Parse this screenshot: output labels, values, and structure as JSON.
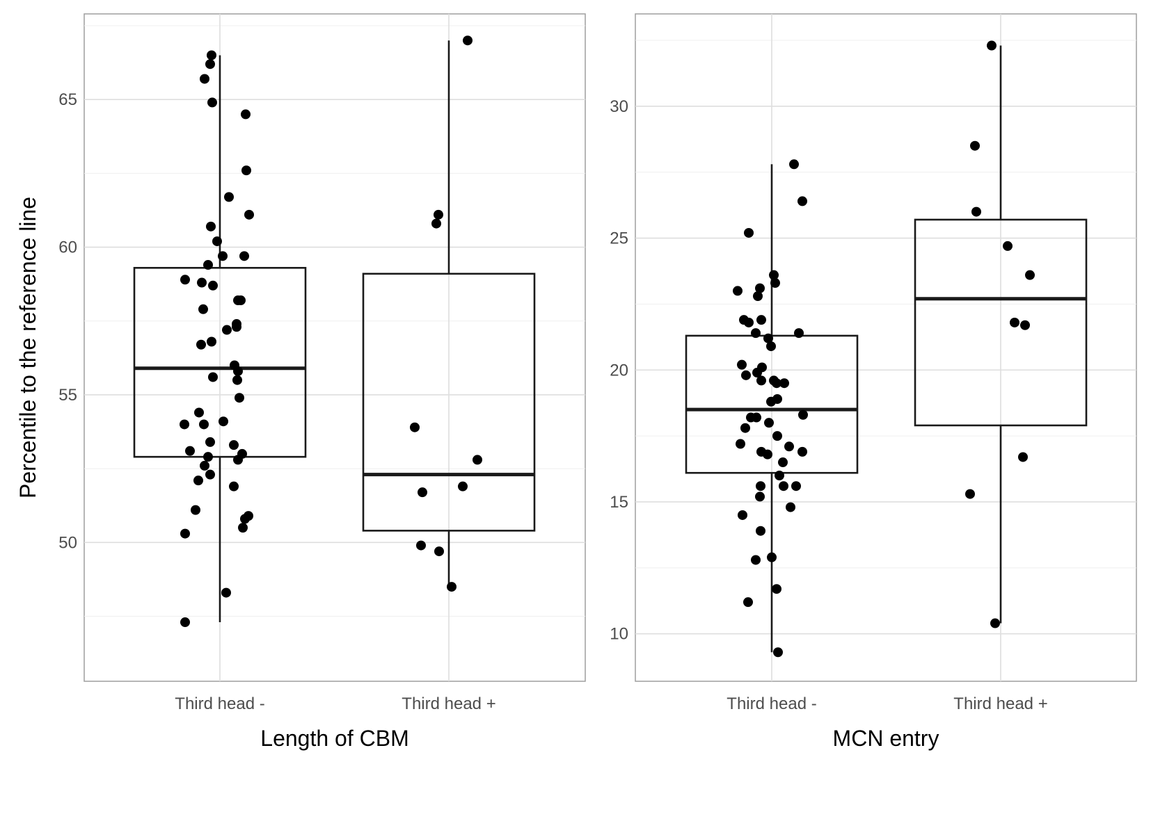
{
  "chart_data": [
    {
      "type": "boxplot",
      "xlabel": "Length of CBM",
      "ylabel": "Percentile to the reference line",
      "categories": [
        "Third head -",
        "Third head +"
      ],
      "ylim": [
        45.3,
        67.9
      ],
      "yticks": [
        50,
        55,
        60,
        65
      ],
      "grid": true,
      "boxes": [
        {
          "category": "Third head -",
          "whisker_low": 47.3,
          "q1": 52.9,
          "median": 55.9,
          "q3": 59.3,
          "whisker_high": 66.5
        },
        {
          "category": "Third head +",
          "whisker_low": 48.5,
          "q1": 50.4,
          "median": 52.3,
          "q3": 59.1,
          "whisker_high": 67.0
        }
      ],
      "points": [
        {
          "category": "Third head -",
          "values": [
            66.5,
            66.2,
            65.7,
            64.9,
            64.5,
            62.6,
            61.7,
            61.1,
            60.7,
            60.2,
            59.7,
            59.7,
            59.4,
            58.9,
            58.8,
            58.7,
            58.2,
            58.2,
            57.9,
            57.4,
            57.3,
            57.2,
            56.8,
            56.7,
            56.0,
            55.8,
            55.6,
            55.5,
            54.9,
            54.4,
            54.1,
            54.0,
            54.0,
            53.4,
            53.3,
            53.1,
            53.0,
            52.9,
            52.8,
            52.6,
            52.3,
            52.1,
            51.9,
            51.1,
            50.9,
            50.8,
            50.5,
            50.3,
            48.3,
            47.3
          ]
        },
        {
          "category": "Third head +",
          "values": [
            67.0,
            61.1,
            60.8,
            53.9,
            52.8,
            51.9,
            51.7,
            49.9,
            49.7,
            48.5
          ]
        }
      ]
    },
    {
      "type": "boxplot",
      "xlabel": "MCN entry",
      "ylabel": "",
      "categories": [
        "Third head -",
        "Third head +"
      ],
      "ylim": [
        8.2,
        33.5
      ],
      "yticks": [
        10,
        15,
        20,
        25,
        30
      ],
      "grid": true,
      "boxes": [
        {
          "category": "Third head -",
          "whisker_low": 9.3,
          "q1": 16.1,
          "median": 18.5,
          "q3": 21.3,
          "whisker_high": 27.8
        },
        {
          "category": "Third head +",
          "whisker_low": 10.4,
          "q1": 17.9,
          "median": 22.7,
          "q3": 25.7,
          "whisker_high": 32.3
        }
      ],
      "points": [
        {
          "category": "Third head -",
          "values": [
            27.8,
            26.4,
            25.2,
            23.6,
            23.3,
            23.1,
            23.0,
            22.8,
            21.9,
            21.9,
            21.8,
            21.4,
            21.4,
            21.2,
            20.9,
            20.2,
            20.1,
            19.9,
            19.8,
            19.6,
            19.6,
            19.5,
            19.5,
            18.9,
            18.8,
            18.3,
            18.2,
            18.2,
            18.0,
            17.8,
            17.5,
            17.2,
            17.1,
            16.9,
            16.9,
            16.8,
            16.5,
            16.0,
            15.6,
            15.6,
            15.6,
            15.2,
            14.8,
            14.5,
            13.9,
            12.9,
            12.8,
            11.7,
            11.2,
            9.3
          ]
        },
        {
          "category": "Third head +",
          "values": [
            32.3,
            28.5,
            26.0,
            24.7,
            23.6,
            21.8,
            21.7,
            16.7,
            15.3,
            10.4
          ]
        }
      ]
    }
  ]
}
